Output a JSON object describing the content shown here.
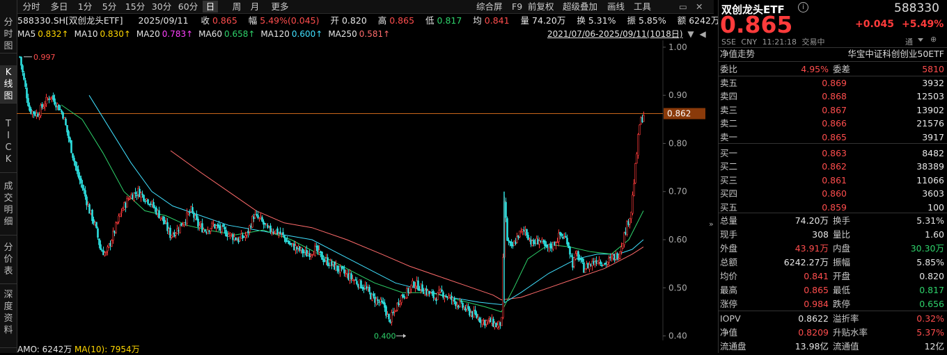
{
  "left_tabs": [
    {
      "label": "分\n时\n图",
      "active": false
    },
    {
      "label": "K\n线\n图",
      "active": true
    },
    {
      "label": "T\nI\nC\nK",
      "active": false
    },
    {
      "label": "成\n交\n明\n细",
      "active": false
    },
    {
      "label": "分\n价\n表",
      "active": false
    },
    {
      "label": "深\n度\n资\n料",
      "active": false
    }
  ],
  "toolbar": {
    "periods": [
      "分时",
      "多日",
      "1分",
      "5分",
      "15分",
      "30分",
      "60分",
      "日",
      "周",
      "月",
      "更多"
    ],
    "active_period": "日",
    "right_items": [
      "综合屏",
      "F9",
      "前复权",
      "超级叠加",
      "画线",
      "工具"
    ]
  },
  "info": {
    "code_name": "588330.SH[双创龙头ETF]",
    "date": "2025/09/11",
    "close_label": "收",
    "close": "0.865",
    "change_label": "幅",
    "change": "5.49%(0.045)",
    "open_label": "开",
    "open": "0.820",
    "high_label": "高",
    "high": "0.865",
    "low_label": "低",
    "low": "0.817",
    "avg_label": "均",
    "avg": "0.841",
    "volume_label": "量",
    "volume": "74.20万",
    "turnover_label": "换",
    "turnover": "5.31%",
    "amplitude_label": "振",
    "amplitude": "5.85%",
    "amount_label": "额",
    "amount": "6242万"
  },
  "ma_line": [
    {
      "label": "MA5",
      "value": "0.832↑",
      "color": "#ffd700"
    },
    {
      "label": "MA10",
      "value": "0.830↑",
      "color": "#ffd700"
    },
    {
      "label": "MA20",
      "value": "0.783↑",
      "color": "#ff40ff"
    },
    {
      "label": "MA60",
      "value": "0.658↑",
      "color": "#2ed36b"
    },
    {
      "label": "MA120",
      "value": "0.600↑",
      "color": "#40e0ff"
    },
    {
      "label": "MA250",
      "value": "0.581↑",
      "color": "#ff6b6b"
    }
  ],
  "range_label": "2021/07/06-2025/09/11(1018日)",
  "chart_data": {
    "type": "candlestick",
    "y_ticks": [
      "1.00",
      "0.90",
      "0.80",
      "0.70",
      "0.60",
      "0.50",
      "0.40"
    ],
    "ylim": [
      0.395,
      1.01
    ],
    "high_marker": "0.997",
    "low_marker": "0.400",
    "current_price_label": "0.862",
    "price_path": [
      [
        0,
        0.98
      ],
      [
        6,
        0.93
      ],
      [
        14,
        0.87
      ],
      [
        25,
        0.86
      ],
      [
        34,
        0.88
      ],
      [
        44,
        0.9
      ],
      [
        54,
        0.88
      ],
      [
        62,
        0.86
      ],
      [
        72,
        0.8
      ],
      [
        82,
        0.74
      ],
      [
        92,
        0.7
      ],
      [
        100,
        0.66
      ],
      [
        108,
        0.63
      ],
      [
        116,
        0.58
      ],
      [
        124,
        0.57
      ],
      [
        134,
        0.61
      ],
      [
        146,
        0.66
      ],
      [
        158,
        0.69
      ],
      [
        170,
        0.7
      ],
      [
        178,
        0.69
      ],
      [
        186,
        0.68
      ],
      [
        196,
        0.66
      ],
      [
        206,
        0.64
      ],
      [
        216,
        0.61
      ],
      [
        226,
        0.62
      ],
      [
        236,
        0.64
      ],
      [
        246,
        0.66
      ],
      [
        256,
        0.63
      ],
      [
        266,
        0.62
      ],
      [
        278,
        0.63
      ],
      [
        290,
        0.62
      ],
      [
        302,
        0.61
      ],
      [
        314,
        0.6
      ],
      [
        326,
        0.61
      ],
      [
        336,
        0.65
      ],
      [
        346,
        0.64
      ],
      [
        356,
        0.62
      ],
      [
        366,
        0.62
      ],
      [
        376,
        0.61
      ],
      [
        388,
        0.59
      ],
      [
        400,
        0.58
      ],
      [
        412,
        0.57
      ],
      [
        424,
        0.58
      ],
      [
        436,
        0.56
      ],
      [
        446,
        0.55
      ],
      [
        456,
        0.54
      ],
      [
        466,
        0.53
      ],
      [
        476,
        0.52
      ],
      [
        486,
        0.51
      ],
      [
        496,
        0.5
      ],
      [
        506,
        0.48
      ],
      [
        516,
        0.47
      ],
      [
        524,
        0.46
      ],
      [
        530,
        0.43
      ],
      [
        538,
        0.45
      ],
      [
        546,
        0.48
      ],
      [
        556,
        0.49
      ],
      [
        566,
        0.51
      ],
      [
        576,
        0.5
      ],
      [
        586,
        0.49
      ],
      [
        596,
        0.48
      ],
      [
        606,
        0.49
      ],
      [
        616,
        0.48
      ],
      [
        626,
        0.47
      ],
      [
        636,
        0.46
      ],
      [
        646,
        0.45
      ],
      [
        656,
        0.44
      ],
      [
        666,
        0.43
      ],
      [
        676,
        0.43
      ],
      [
        686,
        0.42
      ],
      [
        692,
        0.43
      ],
      [
        696,
        0.68
      ],
      [
        700,
        0.6
      ],
      [
        706,
        0.58
      ],
      [
        716,
        0.61
      ],
      [
        726,
        0.62
      ],
      [
        736,
        0.59
      ],
      [
        746,
        0.6
      ],
      [
        756,
        0.58
      ],
      [
        766,
        0.59
      ],
      [
        776,
        0.61
      ],
      [
        786,
        0.6
      ],
      [
        794,
        0.55
      ],
      [
        800,
        0.57
      ],
      [
        810,
        0.54
      ],
      [
        820,
        0.55
      ],
      [
        830,
        0.56
      ],
      [
        840,
        0.55
      ],
      [
        850,
        0.56
      ],
      [
        860,
        0.57
      ],
      [
        866,
        0.6
      ],
      [
        872,
        0.63
      ],
      [
        878,
        0.66
      ],
      [
        882,
        0.72
      ],
      [
        886,
        0.78
      ],
      [
        890,
        0.84
      ],
      [
        896,
        0.86
      ]
    ],
    "ma_series": [
      {
        "name": "MA250",
        "color": "#ff6b6b",
        "points": [
          [
            217,
            0.785
          ],
          [
            260,
            0.74
          ],
          [
            300,
            0.7
          ],
          [
            340,
            0.66
          ],
          [
            380,
            0.635
          ],
          [
            420,
            0.625
          ],
          [
            470,
            0.6
          ],
          [
            520,
            0.57
          ],
          [
            560,
            0.545
          ],
          [
            600,
            0.525
          ],
          [
            640,
            0.505
          ],
          [
            680,
            0.485
          ],
          [
            692,
            0.475
          ],
          [
            720,
            0.48
          ],
          [
            760,
            0.5
          ],
          [
            800,
            0.52
          ],
          [
            840,
            0.54
          ],
          [
            880,
            0.57
          ],
          [
            896,
            0.585
          ]
        ]
      },
      {
        "name": "MA120",
        "color": "#40e0ff",
        "points": [
          [
            100,
            0.9
          ],
          [
            130,
            0.83
          ],
          [
            160,
            0.76
          ],
          [
            190,
            0.7
          ],
          [
            220,
            0.67
          ],
          [
            260,
            0.65
          ],
          [
            300,
            0.63
          ],
          [
            340,
            0.62
          ],
          [
            380,
            0.61
          ],
          [
            420,
            0.6
          ],
          [
            460,
            0.57
          ],
          [
            500,
            0.54
          ],
          [
            540,
            0.51
          ],
          [
            580,
            0.495
          ],
          [
            620,
            0.48
          ],
          [
            660,
            0.47
          ],
          [
            692,
            0.465
          ],
          [
            720,
            0.49
          ],
          [
            760,
            0.53
          ],
          [
            800,
            0.56
          ],
          [
            830,
            0.57
          ],
          [
            860,
            0.57
          ],
          [
            880,
            0.58
          ],
          [
            896,
            0.6
          ]
        ]
      },
      {
        "name": "MA60",
        "color": "#2ed36b",
        "points": [
          [
            60,
            0.88
          ],
          [
            90,
            0.85
          ],
          [
            120,
            0.78
          ],
          [
            150,
            0.7
          ],
          [
            180,
            0.66
          ],
          [
            210,
            0.65
          ],
          [
            240,
            0.63
          ],
          [
            270,
            0.62
          ],
          [
            310,
            0.61
          ],
          [
            350,
            0.62
          ],
          [
            390,
            0.6
          ],
          [
            430,
            0.57
          ],
          [
            470,
            0.54
          ],
          [
            510,
            0.51
          ],
          [
            550,
            0.49
          ],
          [
            590,
            0.49
          ],
          [
            630,
            0.475
          ],
          [
            670,
            0.46
          ],
          [
            692,
            0.45
          ],
          [
            710,
            0.5
          ],
          [
            730,
            0.56
          ],
          [
            760,
            0.59
          ],
          [
            790,
            0.585
          ],
          [
            820,
            0.575
          ],
          [
            850,
            0.57
          ],
          [
            875,
            0.6
          ],
          [
            896,
            0.66
          ]
        ]
      }
    ]
  },
  "amo": {
    "label": "AMO:",
    "value": "6242万",
    "ma_label": "MA(10):",
    "ma_value": "7954万"
  },
  "right": {
    "title": "双创龙头ETF",
    "code": "588330",
    "price": "0.865",
    "change": "+0.045",
    "change_pct": "+5.49%",
    "exchange": "SSE",
    "currency": "CNY",
    "time": "11:21:18",
    "status": "交易中",
    "channel": "通",
    "trend_label": "净值走势",
    "index_name": "华宝中证科创创业50ETF",
    "weibi_label": "委比",
    "weibi": "4.95%",
    "weicha_label": "委差",
    "weicha": "5810",
    "asks": [
      {
        "label": "卖五",
        "price": "0.869",
        "vol": "3932"
      },
      {
        "label": "卖四",
        "price": "0.868",
        "vol": "12503"
      },
      {
        "label": "卖三",
        "price": "0.867",
        "vol": "13902"
      },
      {
        "label": "卖二",
        "price": "0.866",
        "vol": "21576"
      },
      {
        "label": "卖一",
        "price": "0.865",
        "vol": "3917"
      }
    ],
    "bids": [
      {
        "label": "买一",
        "price": "0.863",
        "vol": "8482"
      },
      {
        "label": "买二",
        "price": "0.862",
        "vol": "38389"
      },
      {
        "label": "买三",
        "price": "0.861",
        "vol": "11066"
      },
      {
        "label": "买四",
        "price": "0.860",
        "vol": "3603"
      },
      {
        "label": "买五",
        "price": "0.859",
        "vol": "100"
      }
    ],
    "stats": [
      {
        "l1": "总量",
        "v1": "74.20万",
        "c1": "#e6e6e6",
        "l2": "换手",
        "v2": "5.31%",
        "c2": "#e6e6e6"
      },
      {
        "l1": "现手",
        "v1": "308",
        "c1": "#e6e6e6",
        "l2": "量比",
        "v2": "1.60",
        "c2": "#e6e6e6"
      },
      {
        "l1": "外盘",
        "v1": "43.91万",
        "c1": "#ff4d4d",
        "l2": "内盘",
        "v2": "30.30万",
        "c2": "#2ed36b"
      },
      {
        "l1": "总额",
        "v1": "6242.27万",
        "c1": "#e6e6e6",
        "l2": "振幅",
        "v2": "5.85%",
        "c2": "#e6e6e6"
      },
      {
        "l1": "均价",
        "v1": "0.841",
        "c1": "#ff4d4d",
        "l2": "开盘",
        "v2": "0.820",
        "c2": "#e6e6e6"
      },
      {
        "l1": "最高",
        "v1": "0.865",
        "c1": "#ff4d4d",
        "l2": "最低",
        "v2": "0.817",
        "c2": "#2ed36b"
      },
      {
        "l1": "涨停",
        "v1": "0.984",
        "c1": "#ff4d4d",
        "l2": "跌停",
        "v2": "0.656",
        "c2": "#2ed36b"
      }
    ],
    "stats2": [
      {
        "l1": "IOPV",
        "v1": "0.8622",
        "c1": "#e6e6e6",
        "l2": "溢折率",
        "v2": "0.32%",
        "c2": "#ff4d4d"
      },
      {
        "l1": "净值",
        "v1": "0.8209",
        "c1": "#ff4d4d",
        "l2": "升贴水率",
        "v2": "5.37%",
        "c2": "#ff4d4d"
      },
      {
        "l1": "流通盘",
        "v1": "13.98亿",
        "c1": "#e6e6e6",
        "l2": "流通值",
        "v2": "12亿",
        "c2": "#e6e6e6"
      }
    ]
  }
}
